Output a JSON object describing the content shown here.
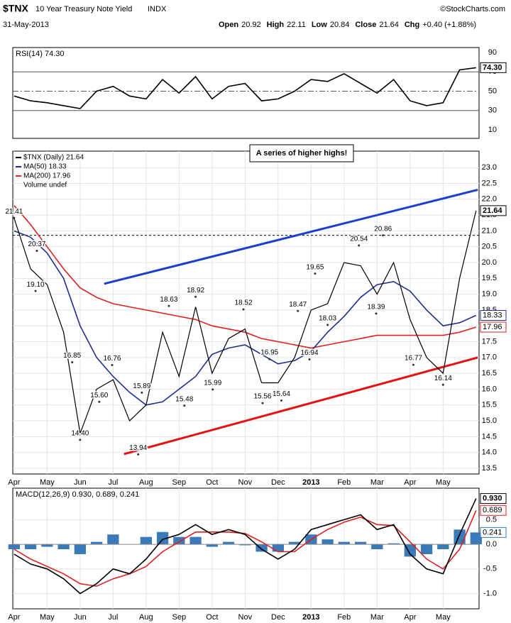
{
  "header": {
    "symbol": "$TNX",
    "name": "10 Year Treasury Note Yield",
    "exchange": "INDX",
    "source": "©StockCharts.com",
    "date": "31-May-2013",
    "quote": [
      {
        "label": "Open",
        "value": "20.92"
      },
      {
        "label": "High",
        "value": "22.11"
      },
      {
        "label": "Low",
        "value": "20.84"
      },
      {
        "label": "Close",
        "value": "21.64"
      },
      {
        "label": "Chg",
        "value": "+0.40 (+1.88%)"
      }
    ]
  },
  "chart_data": [
    {
      "type": "line",
      "legend": "RSI(14) 74.30",
      "x": [
        0,
        0.5,
        1,
        1.5,
        2,
        2.5,
        3,
        3.5,
        4,
        4.5,
        5,
        5.5,
        6,
        6.5,
        7,
        7.5,
        8,
        8.5,
        9,
        9.5,
        10,
        10.5,
        11,
        11.5,
        12,
        12.5,
        13,
        13.5,
        14
      ],
      "xlim": [
        -0.04,
        14.09
      ],
      "ylim": [
        1.2,
        95.1
      ],
      "yticks": [
        10,
        30,
        50,
        70,
        90
      ],
      "reference_lines": [
        70,
        50,
        30
      ],
      "series": [
        {
          "color": "#000000",
          "last_label": "74.30",
          "values": [
            45,
            40,
            38,
            35,
            32,
            50,
            55,
            45,
            42,
            62,
            48,
            65,
            42,
            55,
            58,
            40,
            42,
            50,
            62,
            60,
            68,
            58,
            48,
            62,
            40,
            35,
            38,
            72,
            74.3
          ]
        }
      ]
    },
    {
      "type": "line",
      "annotation": "A series of higher highs!",
      "legend_extra": "Volume undef",
      "x": [
        0,
        0.5,
        1,
        1.5,
        2,
        2.5,
        3,
        3.5,
        4,
        4.5,
        5,
        5.5,
        6,
        6.5,
        7,
        7.5,
        8,
        8.5,
        9,
        9.5,
        10,
        10.5,
        11,
        11.5,
        12,
        12.5,
        13,
        13.5,
        14
      ],
      "xlim": [
        -0.04,
        14.09
      ],
      "ylim": [
        13.32,
        23.52
      ],
      "xticks": [
        {
          "value": 0,
          "label": "Apr"
        },
        {
          "value": 1,
          "label": "May"
        },
        {
          "value": 2,
          "label": "Jun"
        },
        {
          "value": 3,
          "label": "Jul"
        },
        {
          "value": 4,
          "label": "Aug"
        },
        {
          "value": 5,
          "label": "Sep"
        },
        {
          "value": 6,
          "label": "Oct"
        },
        {
          "value": 7,
          "label": "Nov"
        },
        {
          "value": 8,
          "label": "Dec"
        },
        {
          "value": 9,
          "label": "2013"
        },
        {
          "value": 10,
          "label": "Feb"
        },
        {
          "value": 11,
          "label": "Mar"
        },
        {
          "value": 12,
          "label": "Apr"
        },
        {
          "value": 13,
          "label": "May"
        }
      ],
      "yticks": [
        {
          "value": 13.5,
          "label": "13.5"
        },
        {
          "value": 14,
          "label": "14.0"
        },
        {
          "value": 14.5,
          "label": "14.5"
        },
        {
          "value": 15,
          "label": "15.0"
        },
        {
          "value": 15.5,
          "label": "15.5"
        },
        {
          "value": 16,
          "label": "16.0"
        },
        {
          "value": 16.5,
          "label": "16.5"
        },
        {
          "value": 17,
          "label": "17.0"
        },
        {
          "value": 17.5,
          "label": "17.5"
        },
        {
          "value": 18,
          "label": "18.0"
        },
        {
          "value": 18.5,
          "label": "18.5"
        },
        {
          "value": 19,
          "label": "19.0"
        },
        {
          "value": 19.5,
          "label": "19.5"
        },
        {
          "value": 20,
          "label": "20.0"
        },
        {
          "value": 20.5,
          "label": "20.5"
        },
        {
          "value": 21,
          "label": "21.0"
        },
        {
          "value": 21.5,
          "label": "21.5"
        },
        {
          "value": 22,
          "label": "22.0"
        },
        {
          "value": 22.5,
          "label": "22.5"
        },
        {
          "value": 23,
          "label": "23.0"
        }
      ],
      "grid": true,
      "resistance": 20.86,
      "series": [
        {
          "name": "$TNX (Daily) 21.64",
          "color": "#000000",
          "last_label": "21.64",
          "values": [
            21.4,
            19.8,
            19.3,
            17.8,
            14.6,
            16.0,
            16.3,
            15.0,
            15.5,
            17.8,
            16.4,
            18.6,
            16.5,
            17.6,
            17.9,
            16.2,
            16.2,
            17.0,
            18.5,
            18.7,
            20.0,
            19.9,
            19.0,
            20.0,
            18.2,
            17.0,
            16.5,
            19.5,
            21.64
          ]
        },
        {
          "name": "MA(50) 18.33",
          "color": "#1f2f8f",
          "last_label": "18.33",
          "values": [
            21.0,
            20.8,
            20.3,
            19.5,
            18.0,
            17.0,
            16.4,
            15.9,
            15.5,
            15.6,
            16.0,
            16.4,
            17.1,
            17.3,
            17.4,
            17.1,
            16.8,
            16.9,
            17.2,
            17.8,
            18.3,
            18.9,
            19.3,
            19.4,
            19.1,
            18.5,
            18.0,
            18.1,
            18.33
          ]
        },
        {
          "name": "MA(200) 17.96",
          "color": "#e02020",
          "last_label": "17.96",
          "values": [
            21.8,
            21.2,
            20.5,
            19.8,
            19.2,
            18.9,
            18.7,
            18.6,
            18.5,
            18.4,
            18.3,
            18.2,
            18.0,
            17.9,
            17.8,
            17.6,
            17.5,
            17.4,
            17.3,
            17.4,
            17.5,
            17.6,
            17.7,
            17.7,
            17.7,
            17.7,
            17.7,
            17.8,
            17.96
          ]
        }
      ],
      "trendlines": [
        {
          "color": "#1a3fd0",
          "points": [
            [
              2.73,
              19.33
            ],
            [
              14.05,
              22.3
            ]
          ]
        },
        {
          "color": "#e81010",
          "points": [
            [
              3.33,
              13.95
            ],
            [
              14.05,
              17.0
            ]
          ]
        }
      ],
      "labels": [
        {
          "x": 0,
          "y": 21.41,
          "label": "21.41"
        },
        {
          "x": 0.69,
          "y": 20.37,
          "label": "20.37"
        },
        {
          "x": 0.65,
          "y": 19.1,
          "label": "19.10"
        },
        {
          "x": 1.76,
          "y": 16.85,
          "label": "16.85"
        },
        {
          "x": 2.0,
          "y": 14.4,
          "label": "14.40"
        },
        {
          "x": 2.58,
          "y": 15.6,
          "label": "15.60"
        },
        {
          "x": 2.97,
          "y": 16.76,
          "label": "16.76"
        },
        {
          "x": 3.76,
          "y": 13.94,
          "label": "13.94"
        },
        {
          "x": 3.87,
          "y": 15.89,
          "label": "15.89"
        },
        {
          "x": 4.69,
          "y": 18.63,
          "label": "18.63"
        },
        {
          "x": 5.16,
          "y": 15.48,
          "label": "15.48"
        },
        {
          "x": 5.5,
          "y": 18.92,
          "label": "18.92"
        },
        {
          "x": 6.02,
          "y": 15.99,
          "label": "15.99"
        },
        {
          "x": 6.95,
          "y": 18.52,
          "label": "18.52"
        },
        {
          "x": 7.74,
          "y": 16.95,
          "label": "16.95"
        },
        {
          "x": 7.53,
          "y": 15.56,
          "label": "15.56"
        },
        {
          "x": 8.1,
          "y": 15.64,
          "label": "15.64"
        },
        {
          "x": 8.6,
          "y": 18.47,
          "label": "18.47"
        },
        {
          "x": 8.95,
          "y": 16.94,
          "label": "16.94"
        },
        {
          "x": 9.12,
          "y": 19.65,
          "label": "19.65"
        },
        {
          "x": 9.5,
          "y": 18.03,
          "label": "18.03"
        },
        {
          "x": 10.45,
          "y": 20.54,
          "label": "20.54"
        },
        {
          "x": 11.18,
          "y": 20.86,
          "label": "20.86"
        },
        {
          "x": 10.97,
          "y": 18.39,
          "label": "18.39"
        },
        {
          "x": 12.1,
          "y": 16.77,
          "label": "16.77"
        },
        {
          "x": 13.0,
          "y": 16.14,
          "label": "16.14"
        }
      ]
    },
    {
      "type": "line",
      "legend": "MACD(12,26,9) 0.930, 0.689, 0.241",
      "x": [
        0,
        0.5,
        1,
        1.5,
        2,
        2.5,
        3,
        3.5,
        4,
        4.5,
        5,
        5.5,
        6,
        6.5,
        7,
        7.5,
        8,
        8.5,
        9,
        9.5,
        10,
        10.5,
        11,
        11.5,
        12,
        12.5,
        13,
        13.5,
        14
      ],
      "xlim": [
        -0.04,
        14.09
      ],
      "ylim": [
        -1.31,
        1.14
      ],
      "xticks": [
        {
          "value": 0,
          "label": "Apr"
        },
        {
          "value": 1,
          "label": "May"
        },
        {
          "value": 2,
          "label": "Jun"
        },
        {
          "value": 3,
          "label": "Jul"
        },
        {
          "value": 4,
          "label": "Aug"
        },
        {
          "value": 5,
          "label": "Sep"
        },
        {
          "value": 6,
          "label": "Oct"
        },
        {
          "value": 7,
          "label": "Nov"
        },
        {
          "value": 8,
          "label": "Dec"
        },
        {
          "value": 9,
          "label": "2013"
        },
        {
          "value": 10,
          "label": "Feb"
        },
        {
          "value": 11,
          "label": "Mar"
        },
        {
          "value": 12,
          "label": "Apr"
        },
        {
          "value": 13,
          "label": "May"
        }
      ],
      "yticks": [
        {
          "value": -1,
          "label": "-1.0"
        },
        {
          "value": -0.5,
          "label": "-0.5"
        },
        {
          "value": 0,
          "label": "0.0"
        },
        {
          "value": 0.5,
          "label": "0.5"
        }
      ],
      "grid": true,
      "histogram": {
        "color": "#3a7ab8",
        "last_label": "0.241",
        "values": [
          -0.1,
          -0.1,
          -0.05,
          -0.1,
          -0.2,
          0.05,
          0.2,
          0,
          0.15,
          0.25,
          0.15,
          0.15,
          -0.05,
          0.05,
          -0.02,
          -0.15,
          -0.15,
          0.05,
          0.2,
          0.1,
          0.05,
          0.05,
          -0.1,
          0.02,
          -0.25,
          -0.2,
          -0.1,
          0.3,
          0.241
        ]
      },
      "series": [
        {
          "color": "#000000",
          "last_label": "0.930",
          "values": [
            -0.2,
            -0.4,
            -0.5,
            -0.7,
            -1.0,
            -0.8,
            -0.5,
            -0.6,
            -0.3,
            0.1,
            0.2,
            0.4,
            0.2,
            0.3,
            0.2,
            -0.1,
            -0.3,
            -0.1,
            0.3,
            0.4,
            0.5,
            0.6,
            0.3,
            0.4,
            -0.2,
            -0.5,
            -0.6,
            0.2,
            0.93
          ]
        },
        {
          "color": "#e02020",
          "last_label": "0.689",
          "values": [
            -0.1,
            -0.3,
            -0.45,
            -0.6,
            -0.8,
            -0.85,
            -0.7,
            -0.6,
            -0.45,
            -0.15,
            0.05,
            0.25,
            0.25,
            0.25,
            0.22,
            0.05,
            -0.15,
            -0.15,
            0.1,
            0.3,
            0.45,
            0.55,
            0.4,
            0.38,
            0.05,
            -0.3,
            -0.5,
            -0.1,
            0.689
          ]
        }
      ]
    }
  ]
}
